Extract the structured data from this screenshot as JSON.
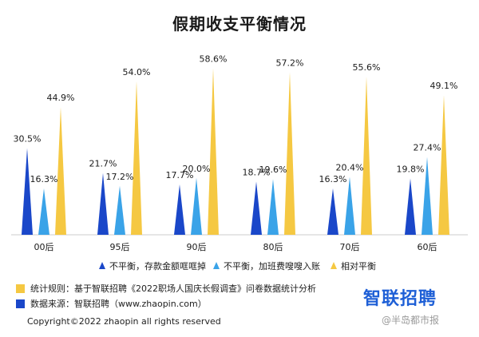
{
  "chart_data": {
    "type": "bar",
    "title": "假期收支平衡情况",
    "categories": [
      "00后",
      "95后",
      "90后",
      "80后",
      "70后",
      "60后"
    ],
    "series": [
      {
        "name": "不平衡，存款金额哐哐掉",
        "color": "#1a47c9",
        "values": [
          30.5,
          21.7,
          17.7,
          18.7,
          16.3,
          19.8
        ]
      },
      {
        "name": "不平衡，加班费嗖嗖入账",
        "color": "#3aa3e8",
        "values": [
          16.3,
          17.2,
          20.0,
          19.6,
          20.4,
          27.4
        ]
      },
      {
        "name": "相对平衡",
        "color": "#f5c842",
        "values": [
          44.9,
          54.0,
          58.6,
          57.2,
          55.6,
          49.1
        ]
      }
    ],
    "value_labels": [
      [
        "30.5%",
        "21.7%",
        "17.7%",
        "18.7%",
        "16.3%",
        "19.8%"
      ],
      [
        "16.3%",
        "17.2%",
        "20.0%",
        "19.6%",
        "20.4%",
        "27.4%"
      ],
      [
        "44.9%",
        "54.0%",
        "58.6%",
        "57.2%",
        "55.6%",
        "49.1%"
      ]
    ],
    "ylim": [
      0,
      60
    ],
    "grid": false,
    "legend_position": "bottom"
  },
  "notes": {
    "rule_label": "统计规则：基于智联招聘《2022职场人国庆长假调查》问卷数据统计分析",
    "rule_color": "#f5c842",
    "source_label": "数据来源：智联招聘（www.zhaopin.com）",
    "source_color": "#1a47c9"
  },
  "logo_text": "智联招聘",
  "copyright": "Copyright©2022 zhaopin all rights reserved",
  "watermark": "@半岛都市报"
}
